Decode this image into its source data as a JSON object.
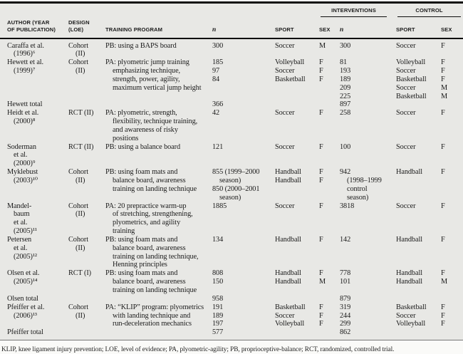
{
  "colors": {
    "table_bg": "#e8e8e5",
    "page_bg": "#fafaf8",
    "rule": "#0d0d0d",
    "text": "#1b1b1b"
  },
  "table": {
    "group_headers": {
      "interventions": "INTERVENTIONS",
      "control": "CONTROL"
    },
    "col_headers": {
      "author_l1": "AUTHOR (YEAR",
      "author_l2": "OF PUBLICATION)",
      "design_l1": "DESIGN",
      "design_l2": "(LOE)",
      "program": "TRAINING PROGRAM",
      "n1": "n",
      "sport1": "SPORT",
      "sex1": "SEX",
      "n2": "n",
      "sport2": "SPORT",
      "sex2": "SEX"
    },
    "rows": [
      [
        "Caraffa et al.",
        "Cohort",
        "PB: using a BAPS board",
        "300",
        "Soccer",
        "M",
        "300",
        "Soccer",
        "F"
      ],
      [
        {
          "t": "(1996)⁶",
          "i": 1
        },
        {
          "t": "(II)",
          "i": 1
        },
        "",
        "",
        "",
        "",
        "",
        "",
        ""
      ],
      [
        "Hewett et al.",
        "Cohort",
        "PA: plyometric jump training",
        "185",
        "Volleyball",
        "F",
        "81",
        "Volleyball",
        "F"
      ],
      [
        {
          "t": "(1999)⁷",
          "i": 1
        },
        {
          "t": "(II)",
          "i": 1
        },
        {
          "t": "emphasizing technique,",
          "i": 1
        },
        "97",
        "Soccer",
        "F",
        "193",
        "Soccer",
        "F"
      ],
      [
        "",
        "",
        {
          "t": "strength, power, agility,",
          "i": 1
        },
        "84",
        "Basketball",
        "F",
        "189",
        "Basketball",
        "F"
      ],
      [
        "",
        "",
        {
          "t": "maximum vertical jump height",
          "i": 1
        },
        "",
        "",
        "",
        "209",
        "Soccer",
        "M"
      ],
      [
        "",
        "",
        "",
        "",
        "",
        "",
        "225",
        "Basketball",
        "M"
      ],
      [
        "Hewett total",
        "",
        "",
        "366",
        "",
        "",
        "897",
        "",
        ""
      ],
      [
        "Heidt et al.",
        "RCT (II)",
        "PA: plyometric, strength,",
        "42",
        "Soccer",
        "F",
        "258",
        "Soccer",
        "F"
      ],
      [
        {
          "t": "(2000)⁸",
          "i": 1
        },
        "",
        {
          "t": "flexibility, technique training,",
          "i": 1
        },
        "",
        "",
        "",
        "",
        "",
        ""
      ],
      [
        "",
        "",
        {
          "t": "and awareness of risky",
          "i": 1
        },
        "",
        "",
        "",
        "",
        "",
        ""
      ],
      [
        "",
        "",
        {
          "t": "positions",
          "i": 1
        },
        "",
        "",
        "",
        "",
        "",
        ""
      ],
      [
        "Soderman",
        "RCT (II)",
        "PB: using a balance board",
        "121",
        "Soccer",
        "F",
        "100",
        "Soccer",
        "F"
      ],
      [
        {
          "t": "et al.",
          "i": 1
        },
        "",
        "",
        "",
        "",
        "",
        "",
        "",
        ""
      ],
      [
        {
          "t": "(2000)⁹",
          "i": 1
        },
        "",
        "",
        "",
        "",
        "",
        "",
        "",
        ""
      ],
      [
        "Myklebust",
        "Cohort",
        "PB: using foam mats and",
        "855 (1999–2000",
        "Handball",
        "F",
        "942",
        "Handball",
        "F"
      ],
      [
        {
          "t": "(2003)¹⁰",
          "i": 1
        },
        {
          "t": "(II)",
          "i": 1
        },
        {
          "t": "balance board, awareness",
          "i": 1
        },
        {
          "t": "season)",
          "i": 1
        },
        "Handball",
        "F",
        {
          "t": "(1998–1999",
          "i": 1
        },
        "",
        ""
      ],
      [
        "",
        "",
        {
          "t": "training on landing technique",
          "i": 1
        },
        "850 (2000–2001",
        "",
        "",
        {
          "t": "control",
          "i": 1
        },
        "",
        ""
      ],
      [
        "",
        "",
        "",
        {
          "t": "season)",
          "i": 1
        },
        "",
        "",
        {
          "t": "season)",
          "i": 1
        },
        "",
        ""
      ],
      [
        "Mandel-",
        "Cohort",
        "PA: 20 prepractice warm-up",
        "1885",
        "Soccer",
        "F",
        "3818",
        "Soccer",
        "F"
      ],
      [
        {
          "t": "baum",
          "i": 1
        },
        {
          "t": "(II)",
          "i": 1
        },
        {
          "t": "of stretching, strengthening,",
          "i": 1
        },
        "",
        "",
        "",
        "",
        "",
        ""
      ],
      [
        {
          "t": "et al.",
          "i": 1
        },
        "",
        {
          "t": "plyometrics, and agility",
          "i": 1
        },
        "",
        "",
        "",
        "",
        "",
        ""
      ],
      [
        {
          "t": "(2005)¹¹",
          "i": 1
        },
        "",
        {
          "t": "training",
          "i": 1
        },
        "",
        "",
        "",
        "",
        "",
        ""
      ],
      [
        "Petersen",
        "Cohort",
        "PB: using foam mats and",
        "134",
        "Handball",
        "F",
        "142",
        "Handball",
        "F"
      ],
      [
        {
          "t": "et al.",
          "i": 1
        },
        {
          "t": "(II)",
          "i": 1
        },
        {
          "t": "balance board, awareness",
          "i": 1
        },
        "",
        "",
        "",
        "",
        "",
        ""
      ],
      [
        {
          "t": "(2005)¹²",
          "i": 1
        },
        "",
        {
          "t": "training on landing technique,",
          "i": 1
        },
        "",
        "",
        "",
        "",
        "",
        ""
      ],
      [
        "",
        "",
        {
          "t": "Henning principles",
          "i": 1
        },
        "",
        "",
        "",
        "",
        "",
        ""
      ],
      [
        "Olsen et al.",
        "RCT (I)",
        "PB: using foam mats and",
        "808",
        "Handball",
        "F",
        "778",
        "Handball",
        "F"
      ],
      [
        {
          "t": "(2005)¹⁴",
          "i": 1
        },
        "",
        {
          "t": "balance board, awareness",
          "i": 1
        },
        "150",
        "Handball",
        "M",
        "101",
        "Handball",
        "M"
      ],
      [
        "",
        "",
        {
          "t": "training on landing technique",
          "i": 1
        },
        "",
        "",
        "",
        "",
        "",
        ""
      ],
      [
        "Olsen total",
        "",
        "",
        "958",
        "",
        "",
        "879",
        "",
        ""
      ],
      [
        "Pfeiffer et al.",
        "Cohort",
        "PA: “KLIP” program: plyometrics",
        "191",
        "Basketball",
        "F",
        "319",
        "Basketball",
        "F"
      ],
      [
        {
          "t": "(2006)¹³",
          "i": 1
        },
        {
          "t": "(II)",
          "i": 1
        },
        {
          "t": "with landing technique and",
          "i": 1
        },
        "189",
        "Soccer",
        "F",
        "244",
        "Soccer",
        "F"
      ],
      [
        "",
        "",
        {
          "t": "run-deceleration mechanics",
          "i": 1
        },
        "197",
        "Volleyball",
        "F",
        "299",
        "Volleyball",
        "F"
      ],
      [
        "Pfeiffer total",
        "",
        "",
        "577",
        "",
        "",
        "862",
        "",
        ""
      ]
    ],
    "footnote": "KLIP, knee ligament injury prevention; LOE, level of evidence; PA, plyometric-agility; PB, proprioceptive-balance; RCT, randomized, controlled trial."
  }
}
